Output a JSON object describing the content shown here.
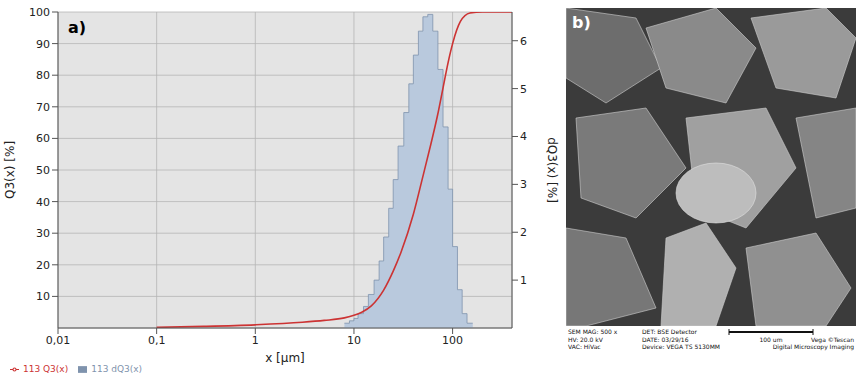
{
  "chart_data": {
    "type": "histogram",
    "panel_label": "a)",
    "x_label": "x [µm]",
    "y_label": "Q3(x) [%]",
    "y2_label": "dQ3(x) [%]",
    "log": "x",
    "grid": true,
    "legend": "bottom-left",
    "xlim": [
      0.01,
      400
    ],
    "xticks": [
      {
        "value": 0.01,
        "label": "0,01"
      },
      {
        "value": 0.1,
        "label": "0,1"
      },
      1,
      10,
      100
    ],
    "ylim": [
      0,
      100
    ],
    "yticks": [
      10,
      20,
      30,
      40,
      50,
      60,
      70,
      80,
      90,
      100
    ],
    "y2lim": [
      0,
      6.6
    ],
    "y2ticks": [
      1,
      2,
      3,
      4,
      5,
      6
    ],
    "series": [
      {
        "name": "113 dQ3(x)",
        "type": "histogram",
        "axis": "y2",
        "color": "#b9c9dd",
        "bins": [
          8,
          9,
          10,
          11,
          12.5,
          14,
          16,
          18,
          20,
          22.5,
          25,
          28,
          32,
          36,
          40,
          45,
          50,
          56,
          63,
          71,
          80,
          90,
          100,
          112,
          125,
          140,
          160
        ],
        "values": [
          0.1,
          0.15,
          0.2,
          0.3,
          0.45,
          0.7,
          1.0,
          1.4,
          1.9,
          2.5,
          3.1,
          3.8,
          4.5,
          5.1,
          5.7,
          6.2,
          6.5,
          6.55,
          6.2,
          5.4,
          4.2,
          2.9,
          1.7,
          0.8,
          0.3,
          0.1
        ]
      },
      {
        "name": "113 Q3(x)",
        "type": "line",
        "color": "#cc3333",
        "x": [
          0.1,
          0.3,
          1,
          3,
          5,
          8,
          10,
          12,
          15,
          20,
          25,
          30,
          40,
          50,
          60,
          70,
          80,
          90,
          100,
          120,
          150,
          200,
          400
        ],
        "values": [
          0.2,
          0.5,
          1,
          1.8,
          2.4,
          3.2,
          4,
          5,
          7,
          12,
          18,
          24,
          36,
          48,
          58,
          67,
          76,
          84,
          90,
          97,
          99.7,
          100,
          100
        ]
      }
    ]
  },
  "micrograph": {
    "panel_label": "b)",
    "info": [
      [
        "SEM MAG: 500 x",
        "HV: 20.0 kV",
        "VAC: HiVac"
      ],
      [
        "DET: BSE Detector",
        "DATE: 03/29/16",
        "Device: VEGA TS 5130MM"
      ]
    ],
    "scale_bar": "100 um",
    "brand": [
      "Vega ©Tescan",
      "Digital Microscopy Imaging"
    ]
  }
}
